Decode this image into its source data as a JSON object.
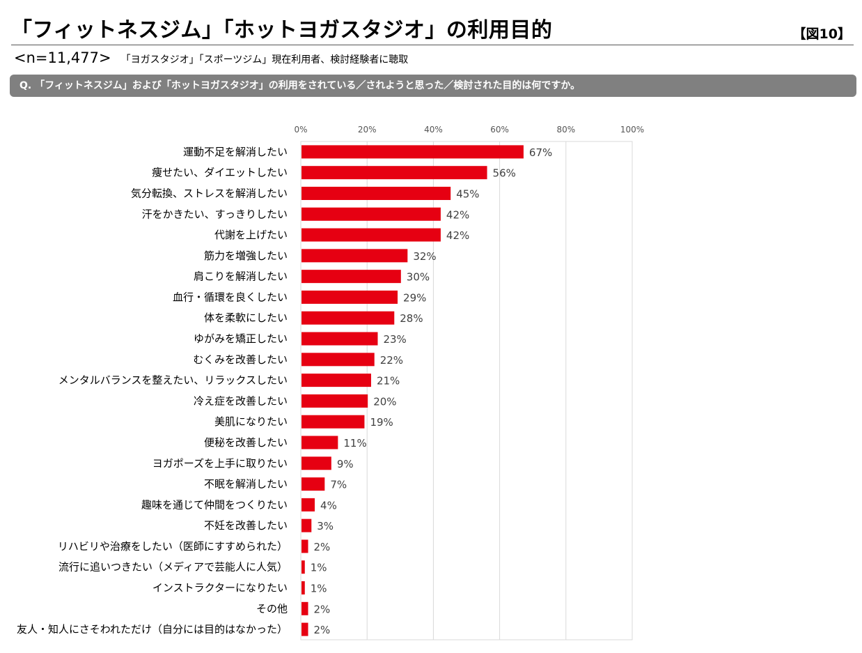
{
  "header": {
    "title": "「フィットネスジム」「ホットヨガスタジオ」の利用目的",
    "figure_label": "【図10】",
    "sample_size": "<n=11,477>",
    "sample_note": "「ヨガスタジオ」「スポーツジム」現在利用者、検討経験者に聴取",
    "question": "Q. 「フィットネスジム」および「ホットヨガスタジオ」の利用をされている／されようと思った／検討された目的は何ですか。"
  },
  "colors": {
    "bar": "#e60012",
    "grid": "#d9d9d9",
    "question_bg": "#808080"
  },
  "chart_data": {
    "type": "bar",
    "orientation": "horizontal",
    "title": "「フィットネスジム」「ホットヨガスタジオ」の利用目的",
    "xlim": [
      0,
      100
    ],
    "xticks": [
      "0%",
      "20%",
      "40%",
      "60%",
      "80%",
      "100%"
    ],
    "tick_values": [
      0,
      20,
      40,
      60,
      80,
      100
    ],
    "unit": "%",
    "categories": [
      "運動不足を解消したい",
      "痩せたい、ダイエットしたい",
      "気分転換、ストレスを解消したい",
      "汗をかきたい、すっきりしたい",
      "代謝を上げたい",
      "筋力を増強したい",
      "肩こりを解消したい",
      "血行・循環を良くしたい",
      "体を柔軟にしたい",
      "ゆがみを矯正したい",
      "むくみを改善したい",
      "メンタルバランスを整えたい、リラックスしたい",
      "冷え症を改善したい",
      "美肌になりたい",
      "便秘を改善したい",
      "ヨガポーズを上手に取りたい",
      "不眠を解消したい",
      "趣味を通じて仲間をつくりたい",
      "不妊を改善したい",
      "リハビリや治療をしたい（医師にすすめられた）",
      "流行に追いつきたい（メディアで芸能人に人気）",
      "インストラクターになりたい",
      "その他",
      "友人・知人にさそわれただけ（自分には目的はなかった）"
    ],
    "values": [
      67,
      56,
      45,
      42,
      42,
      32,
      30,
      29,
      28,
      23,
      22,
      21,
      20,
      19,
      11,
      9,
      7,
      4,
      3,
      2,
      1,
      1,
      2,
      2
    ],
    "value_labels": [
      "67%",
      "56%",
      "45%",
      "42%",
      "42%",
      "32%",
      "30%",
      "29%",
      "28%",
      "23%",
      "22%",
      "21%",
      "20%",
      "19%",
      "11%",
      "9%",
      "7%",
      "4%",
      "3%",
      "2%",
      "1%",
      "1%",
      "2%",
      "2%"
    ]
  }
}
